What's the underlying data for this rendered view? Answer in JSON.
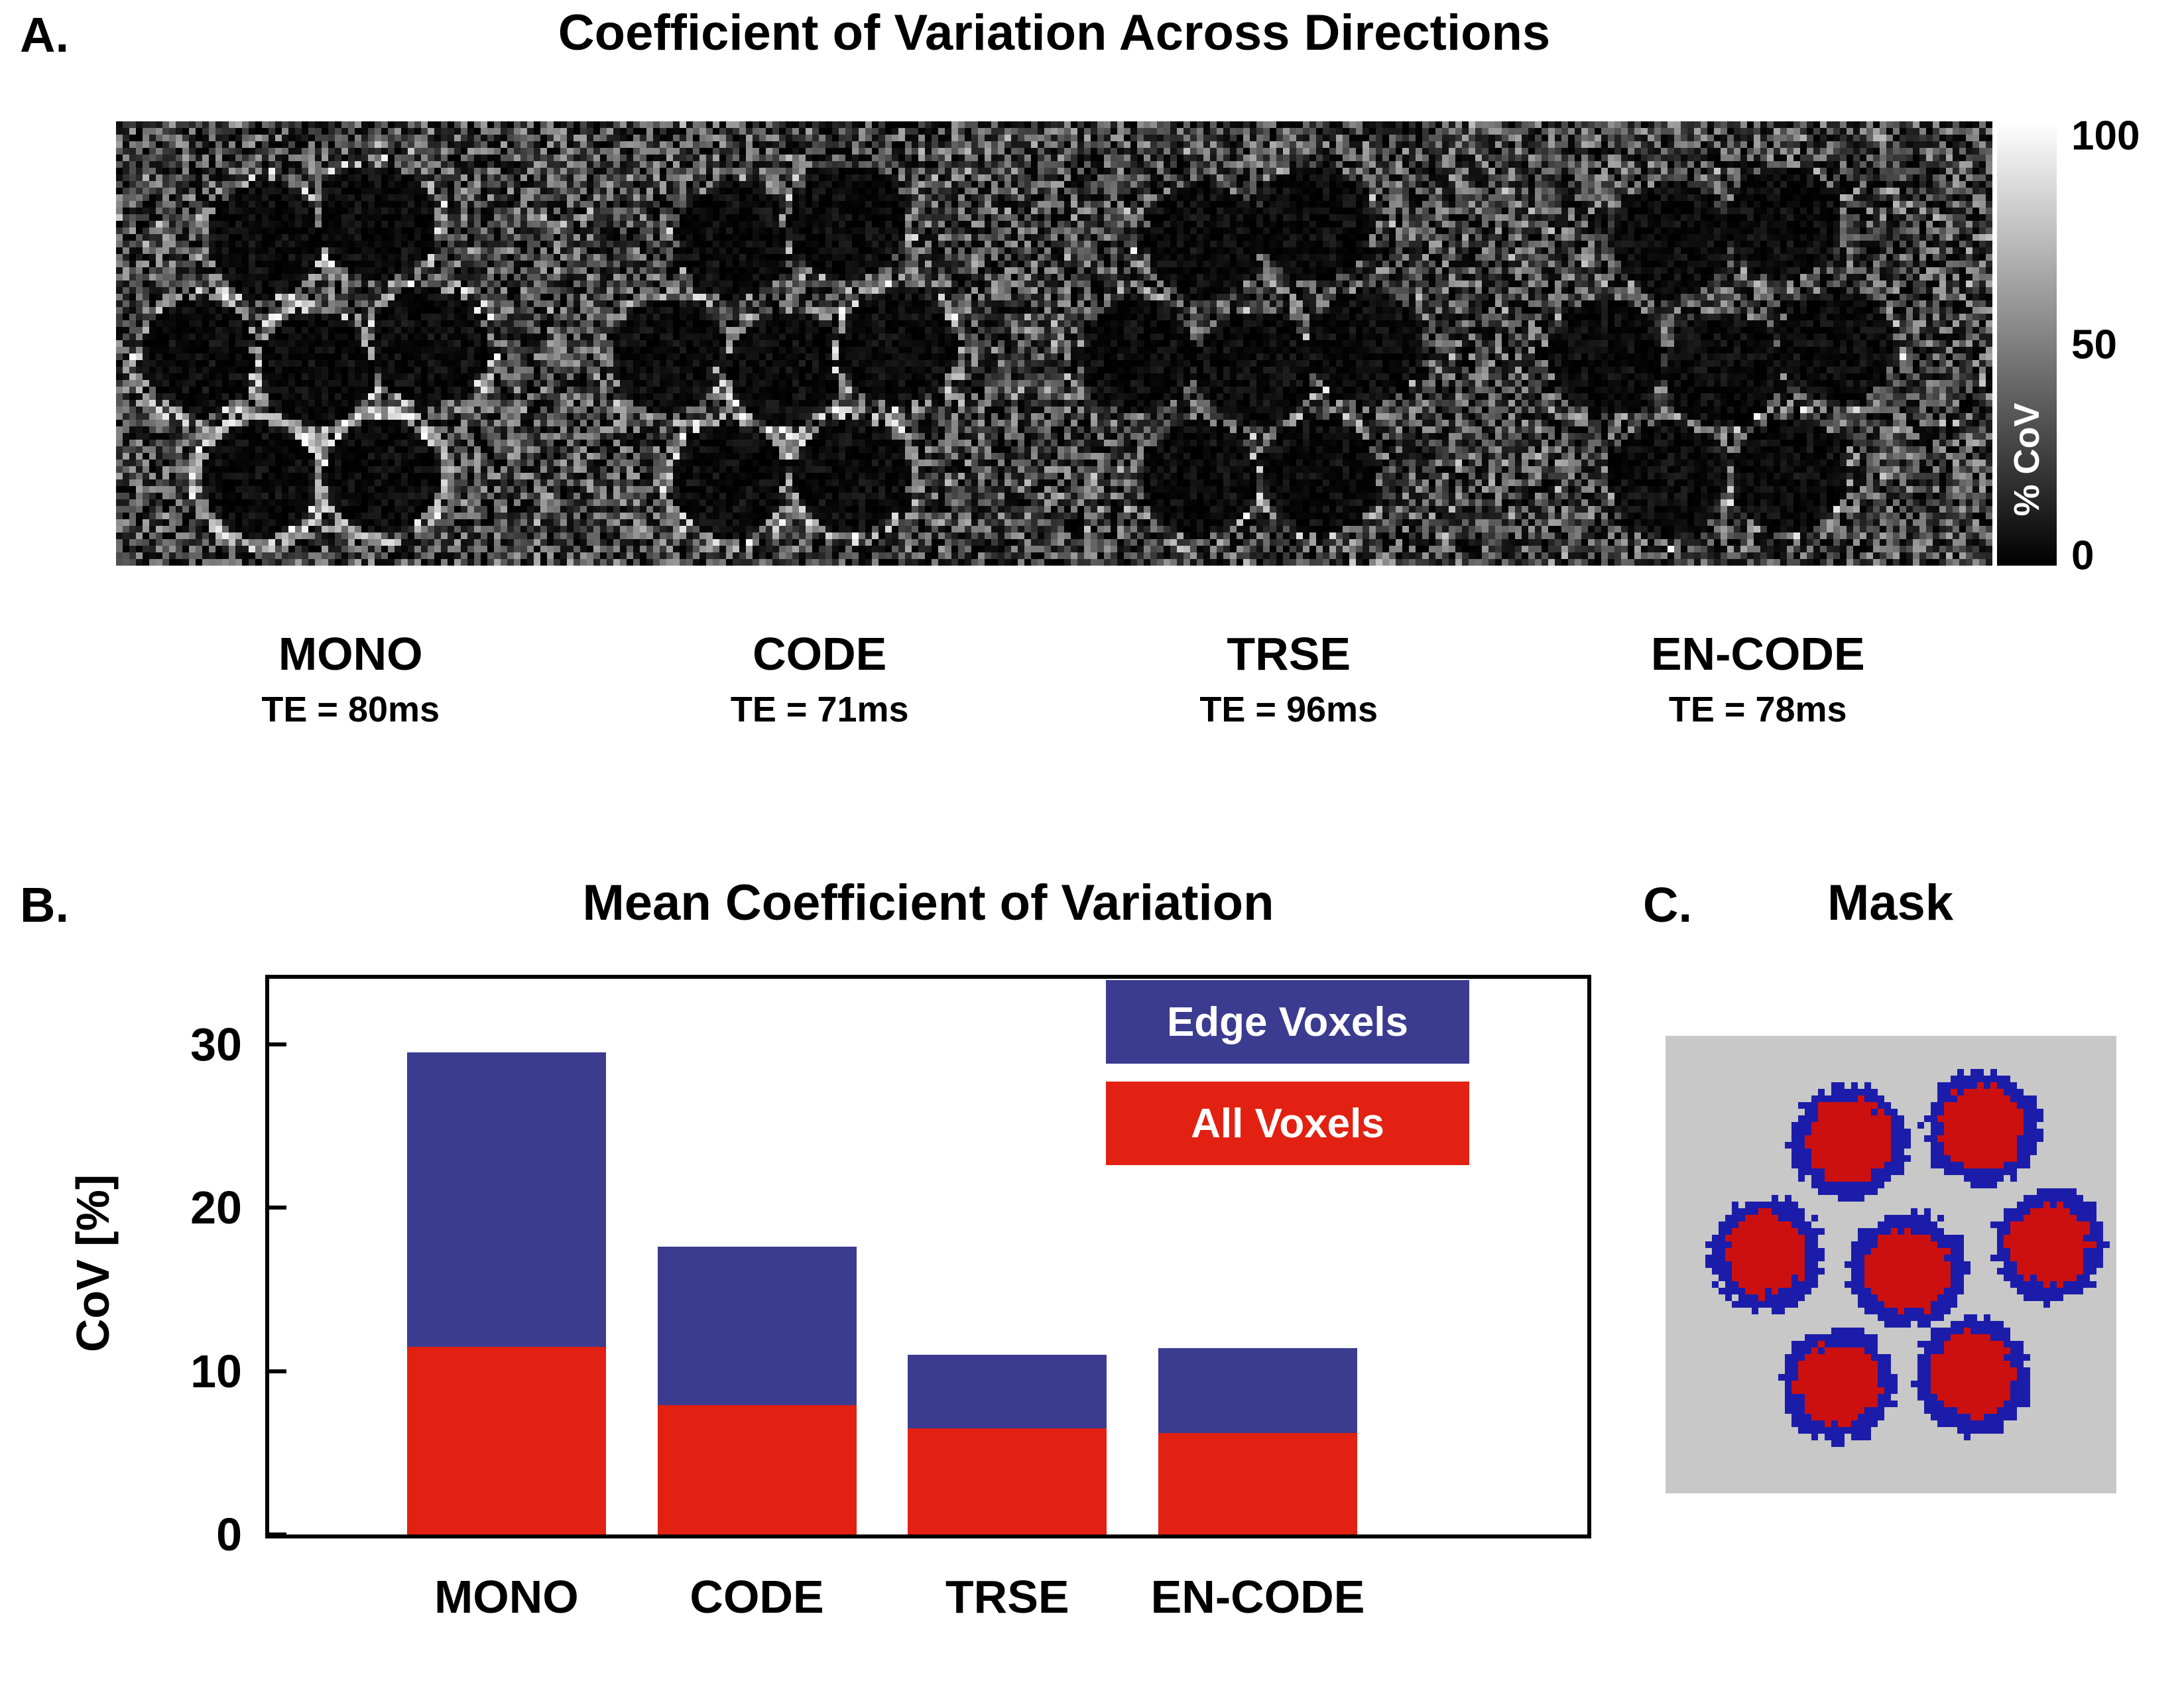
{
  "panelA": {
    "label": "A.",
    "title": "Coefficient of Variation Across Directions",
    "colorbar": {
      "label": "% CoV",
      "tick_top": "100",
      "tick_mid": "50",
      "tick_bottom": "0"
    },
    "sequences": [
      {
        "name": "MONO",
        "te": "TE = 80ms",
        "edge_brightness": 0.9
      },
      {
        "name": "CODE",
        "te": "TE = 71ms",
        "edge_brightness": 0.55
      },
      {
        "name": "TRSE",
        "te": "TE = 96ms",
        "edge_brightness": 0.12
      },
      {
        "name": "EN-CODE",
        "te": "TE = 78ms",
        "edge_brightness": 0.1
      }
    ]
  },
  "panelB": {
    "label": "B."
  },
  "panelC": {
    "label": "C.",
    "title": "Mask",
    "colors": {
      "background": "#c8c8c8",
      "tube_fill": "#cc1010",
      "tube_outline": "#1c1caa"
    }
  },
  "chart_data": {
    "type": "bar",
    "title": "Mean Coefficient of Variation",
    "categories": [
      "MONO",
      "CODE",
      "TRSE",
      "EN-CODE"
    ],
    "series": [
      {
        "name": "Edge Voxels",
        "color": "#3b3b90",
        "values": [
          29.5,
          17.6,
          11.0,
          11.4
        ]
      },
      {
        "name": "All Voxels",
        "color": "#e22112",
        "values": [
          11.5,
          7.9,
          6.5,
          6.2
        ]
      }
    ],
    "ylabel": "CoV [%]",
    "yticks": [
      0,
      10,
      20,
      30
    ],
    "ylim": [
      0,
      34
    ],
    "bar_style": "overlaid",
    "legend_position": "top-right",
    "grid": false
  }
}
